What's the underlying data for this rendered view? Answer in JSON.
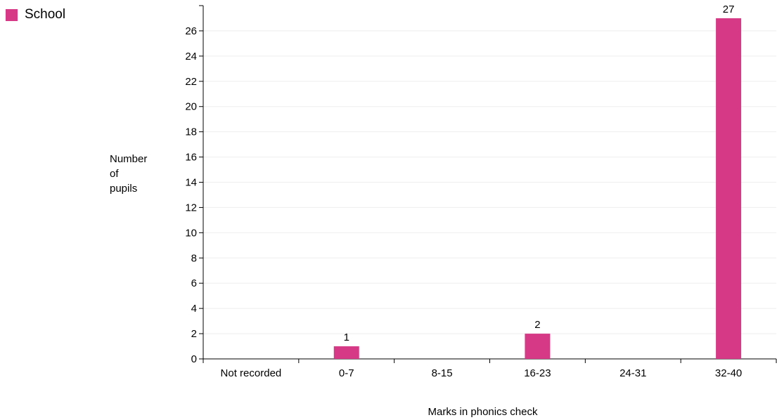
{
  "legend": {
    "label": "School",
    "color": "#d63a86"
  },
  "chart_data": {
    "type": "bar",
    "categories": [
      "Not recorded",
      "0-7",
      "8-15",
      "16-23",
      "24-31",
      "32-40"
    ],
    "series": [
      {
        "name": "School",
        "values": [
          0,
          1,
          0,
          2,
          0,
          27
        ]
      }
    ],
    "data_labels": [
      "",
      "1",
      "",
      "2",
      "",
      "27"
    ],
    "xlabel": "Marks in phonics check",
    "ylabel_lines": [
      "Number",
      "of",
      "pupils"
    ],
    "ylim": [
      0,
      28
    ],
    "yticks": [
      0,
      2,
      4,
      6,
      8,
      10,
      12,
      14,
      16,
      18,
      20,
      22,
      24,
      26
    ],
    "grid": true,
    "legend_position": "top-left",
    "bar_color": "#d63a86",
    "grid_color": "#eeeeee"
  }
}
